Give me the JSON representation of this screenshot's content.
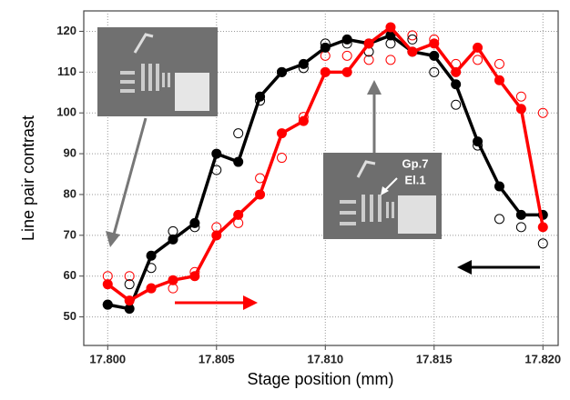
{
  "chart_data": {
    "type": "scatter",
    "xlabel": "Stage position (mm)",
    "ylabel": "Line pair contrast",
    "x": [
      17.8,
      17.801,
      17.802,
      17.803,
      17.804,
      17.805,
      17.806,
      17.807,
      17.808,
      17.809,
      17.81,
      17.811,
      17.812,
      17.813,
      17.814,
      17.815,
      17.816,
      17.817,
      17.818,
      17.819,
      17.82
    ],
    "series": [
      {
        "color": "#ff0000",
        "marker": "open",
        "line": false,
        "values": [
          60,
          60,
          57,
          57,
          61,
          72,
          73,
          84,
          89,
          99,
          114,
          114,
          113,
          113,
          119,
          118,
          112,
          113,
          112,
          104,
          100
        ]
      },
      {
        "color": "#000000",
        "marker": "open",
        "line": false,
        "values": [
          53,
          58,
          62,
          71,
          72,
          86,
          95,
          103,
          110,
          111,
          117,
          117,
          115,
          117,
          118,
          110,
          102,
          92,
          74,
          72,
          68
        ]
      },
      {
        "color": "#000000",
        "marker": "filled",
        "line": true,
        "values": [
          53,
          52,
          65,
          69,
          73,
          90,
          88,
          104,
          110,
          112,
          116,
          118,
          117,
          119,
          115,
          114,
          107,
          93,
          82,
          75,
          75
        ]
      },
      {
        "color": "#ff0000",
        "marker": "filled",
        "line": true,
        "values": [
          58,
          54,
          57,
          59,
          60,
          70,
          75,
          80,
          95,
          98,
          110,
          110,
          117,
          121,
          115,
          117,
          110,
          116,
          108,
          101,
          72
        ]
      }
    ],
    "xlim": [
      17.7989,
      17.8207
    ],
    "ylim": [
      43,
      125
    ],
    "xticks": [
      {
        "value": 17.8,
        "label": "17.800"
      },
      {
        "value": 17.805,
        "label": "17.805"
      },
      {
        "value": 17.81,
        "label": "17.810"
      },
      {
        "value": 17.815,
        "label": "17.815"
      },
      {
        "value": 17.82,
        "label": "17.820"
      }
    ],
    "yticks": [
      50,
      60,
      70,
      80,
      90,
      100,
      110,
      120
    ],
    "grid": true,
    "annotations": [
      "Gp.7",
      "El.1"
    ]
  }
}
